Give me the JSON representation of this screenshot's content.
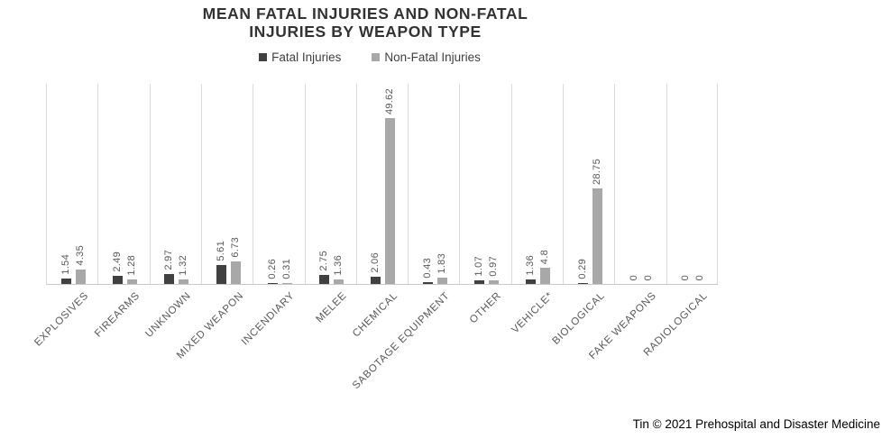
{
  "title": "MEAN FATAL INJURIES AND NON-FATAL INJURIES BY WEAPON TYPE",
  "legend": {
    "items": [
      {
        "label": "Fatal Injuries",
        "color": "#404040"
      },
      {
        "label": "Non-Fatal Injuries",
        "color": "#a8a8a8"
      }
    ]
  },
  "footer": {
    "credit": "Tin © 2021 Prehospital and Disaster Medicine"
  },
  "chart_data": {
    "type": "bar",
    "title": "MEAN FATAL INJURIES AND NON-FATAL INJURIES BY WEAPON TYPE",
    "categories": [
      "EXPLOSIVES",
      "FIREARMS",
      "UNKNOWN",
      "MIXED WEAPON",
      "INCENDIARY",
      "MELEE",
      "CHEMICAL",
      "SABOTAGE EQUIPMENT",
      "OTHER",
      "VEHICLE*",
      "BIOLOGICAL",
      "FAKE WEAPONS",
      "RADIOLOGICAL"
    ],
    "series": [
      {
        "name": "Fatal Injuries",
        "color": "#404040",
        "values": [
          1.54,
          2.49,
          2.97,
          5.61,
          0.26,
          2.75,
          2.06,
          0.43,
          1.07,
          1.36,
          0.29,
          0,
          0
        ]
      },
      {
        "name": "Non-Fatal Injuries",
        "color": "#a8a8a8",
        "values": [
          4.35,
          1.28,
          1.32,
          6.73,
          0.31,
          1.36,
          49.62,
          1.83,
          0.97,
          4.8,
          28.75,
          0,
          0
        ]
      }
    ],
    "data_labels": true,
    "xlabel": "",
    "ylabel": "",
    "ylim": [
      0,
      60
    ],
    "grid": "vertical-category-boundaries",
    "gridline_color": "#d9d9d9",
    "axis_line_color": "#c9c9c9",
    "value_label_color": "#595959",
    "legend_position": "top"
  }
}
